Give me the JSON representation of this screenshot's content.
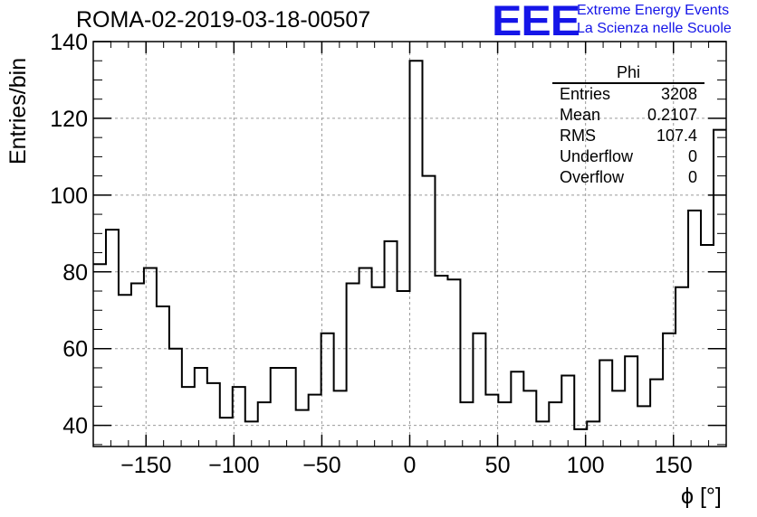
{
  "header": {
    "title": "ROMA-02-2019-03-18-00507",
    "logo_text": "EEE",
    "logo_line1": "Extreme Energy Events",
    "logo_line2": "La Scienza nelle Scuole"
  },
  "stats_box": {
    "title": "Phi",
    "rows": [
      {
        "label": "Entries",
        "value": "3208"
      },
      {
        "label": "Mean",
        "value": "0.2107"
      },
      {
        "label": "RMS",
        "value": "107.4"
      },
      {
        "label": "Underflow",
        "value": "0"
      },
      {
        "label": "Overflow",
        "value": "0"
      }
    ]
  },
  "chart_data": {
    "type": "bar",
    "style": "step-histogram",
    "title": "ROMA-02-2019-03-18-00507",
    "xlabel": "ϕ [°]",
    "ylabel": "Entries/bin",
    "xlim": [
      -180,
      180
    ],
    "ylim": [
      34.5,
      140
    ],
    "bin_width": 7.2,
    "grid": true,
    "x_ticks": [
      -150,
      -100,
      -50,
      0,
      50,
      100,
      150
    ],
    "x_tick_labels": [
      "−150",
      "−100",
      "−50",
      "0",
      "50",
      "100",
      "150"
    ],
    "y_ticks": [
      40,
      60,
      80,
      100,
      120,
      140
    ],
    "y_tick_labels": [
      "40",
      "60",
      "80",
      "100",
      "120",
      "140"
    ],
    "values": [
      82,
      91,
      74,
      77,
      81,
      71,
      60,
      50,
      55,
      51,
      42,
      50,
      41,
      46,
      55,
      55,
      44,
      48,
      64,
      49,
      77,
      81,
      76,
      88,
      75,
      135,
      105,
      79,
      78,
      46,
      64,
      48,
      46,
      54,
      49,
      41,
      46,
      53,
      39,
      41,
      57,
      49,
      58,
      45,
      52,
      64,
      76,
      96,
      87,
      117
    ]
  }
}
